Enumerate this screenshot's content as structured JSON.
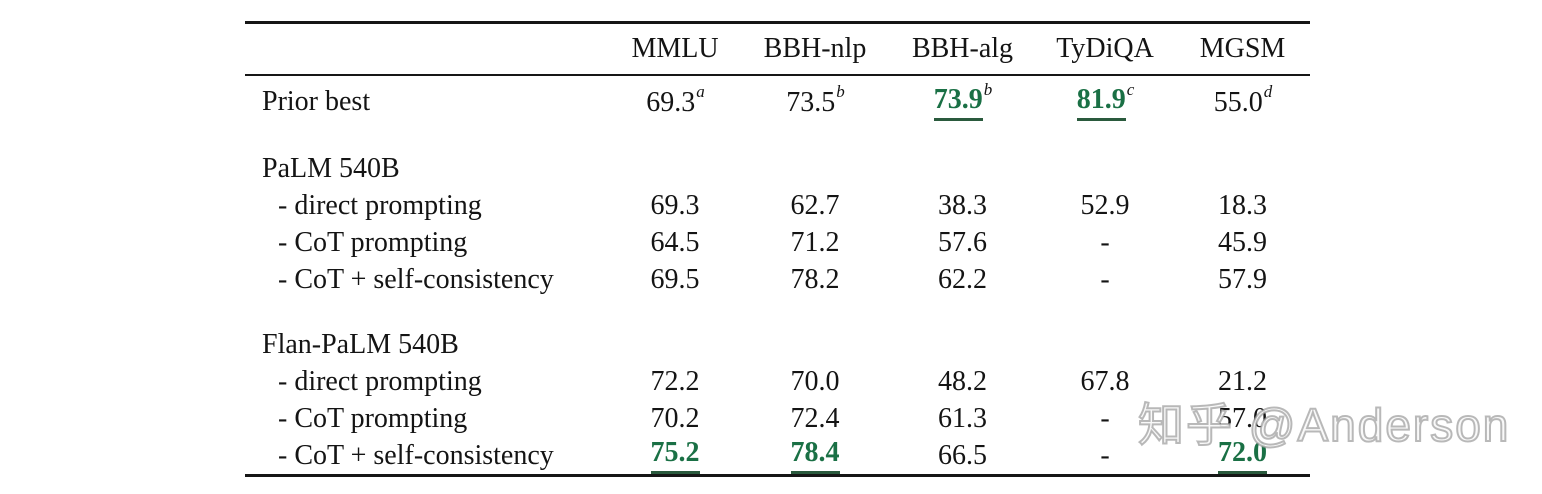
{
  "table": {
    "columns": [
      "MMLU",
      "BBH-nlp",
      "BBH-alg",
      "TyDiQA",
      "MGSM"
    ],
    "rows": [
      {
        "kind": "data",
        "prior": true,
        "label": "Prior best",
        "indent": false,
        "cells": [
          {
            "v": "69.3",
            "sup": "a",
            "best": false
          },
          {
            "v": "73.5",
            "sup": "b",
            "best": false
          },
          {
            "v": "73.9",
            "sup": "b",
            "best": true
          },
          {
            "v": "81.9",
            "sup": "c",
            "best": true
          },
          {
            "v": "55.0",
            "sup": "d",
            "best": false
          }
        ]
      },
      {
        "kind": "gap"
      },
      {
        "kind": "section",
        "label": "PaLM 540B",
        "cells": []
      },
      {
        "kind": "data",
        "label": "- direct prompting",
        "indent": true,
        "cells": [
          {
            "v": "69.3"
          },
          {
            "v": "62.7"
          },
          {
            "v": "38.3"
          },
          {
            "v": "52.9"
          },
          {
            "v": "18.3"
          }
        ]
      },
      {
        "kind": "data",
        "label": "- CoT prompting",
        "indent": true,
        "cells": [
          {
            "v": "64.5"
          },
          {
            "v": "71.2"
          },
          {
            "v": "57.6"
          },
          {
            "v": "-"
          },
          {
            "v": "45.9"
          }
        ]
      },
      {
        "kind": "data",
        "label": "- CoT + self-consistency",
        "indent": true,
        "cells": [
          {
            "v": "69.5"
          },
          {
            "v": "78.2"
          },
          {
            "v": "62.2"
          },
          {
            "v": "-"
          },
          {
            "v": "57.9"
          }
        ]
      },
      {
        "kind": "gap"
      },
      {
        "kind": "section",
        "label": "Flan-PaLM 540B",
        "cells": []
      },
      {
        "kind": "data",
        "label": "- direct prompting",
        "indent": true,
        "cells": [
          {
            "v": "72.2"
          },
          {
            "v": "70.0"
          },
          {
            "v": "48.2"
          },
          {
            "v": "67.8"
          },
          {
            "v": "21.2"
          }
        ]
      },
      {
        "kind": "data",
        "label": "- CoT prompting",
        "indent": true,
        "cells": [
          {
            "v": "70.2"
          },
          {
            "v": "72.4"
          },
          {
            "v": "61.3"
          },
          {
            "v": "-"
          },
          {
            "v": "57.0"
          }
        ]
      },
      {
        "kind": "data",
        "label": "- CoT + self-consistency",
        "indent": true,
        "cells": [
          {
            "v": "75.2",
            "best": true
          },
          {
            "v": "78.4",
            "best": true
          },
          {
            "v": "66.5"
          },
          {
            "v": "-"
          },
          {
            "v": "72.0",
            "best": true
          }
        ]
      }
    ]
  },
  "watermark": {
    "text": "知乎 @Anderson"
  },
  "colors": {
    "green": "#1a7045",
    "underline": "#2a5a3d",
    "text": "#141414",
    "rule": "#161616",
    "watermark": "#bdbdbd"
  }
}
